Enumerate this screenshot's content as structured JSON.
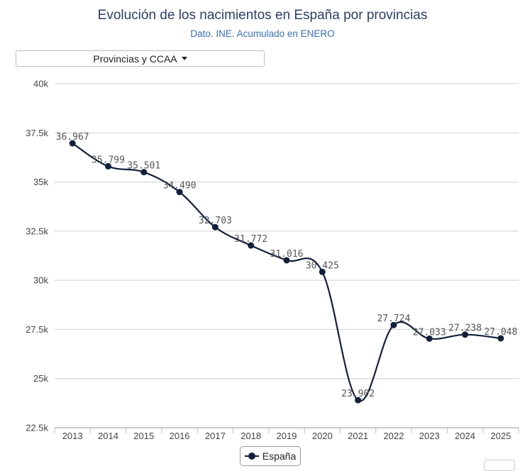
{
  "chart_title": "Evolución de los nacimientos en España por provincias",
  "chart_subtitle": "Dato. INE. Acumulado en ENERO",
  "region_selector": {
    "label": "Provincias y CCAA"
  },
  "chart_data": {
    "type": "line",
    "title": "Evolución de los nacimientos en España por provincias",
    "subtitle": "Dato. INE. Acumulado en ENERO",
    "categories": [
      "2013",
      "2014",
      "2015",
      "2016",
      "2017",
      "2018",
      "2019",
      "2020",
      "2021",
      "2022",
      "2023",
      "2024",
      "2025"
    ],
    "series": [
      {
        "name": "España",
        "values": [
          36967,
          35799,
          35501,
          34490,
          32703,
          31772,
          31016,
          30425,
          23902,
          27724,
          27033,
          27238,
          27048
        ],
        "labels": [
          "36.967",
          "35.799",
          "35.501",
          "34.490",
          "32.703",
          "31.772",
          "31.016",
          "30.425",
          "23.902",
          "27.724",
          "27.033",
          "27.238",
          "27.048"
        ],
        "color": "#12203a"
      }
    ],
    "ylim": [
      22500,
      40000
    ],
    "yticks": [
      22500,
      25000,
      27500,
      30000,
      32500,
      35000,
      37500,
      40000
    ],
    "ytick_labels": [
      "22.5k",
      "25k",
      "27.5k",
      "30k",
      "32.5k",
      "35k",
      "37.5k",
      "40k"
    ],
    "grid": true,
    "legend_position": "bottom-center"
  }
}
